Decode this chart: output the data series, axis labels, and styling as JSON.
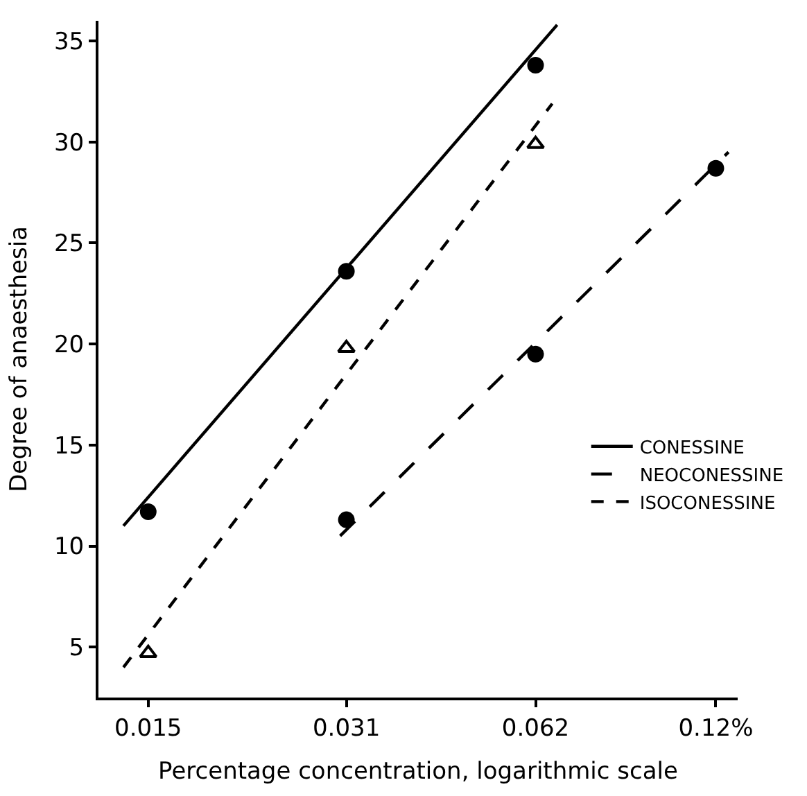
{
  "chart_data": {
    "type": "scatter",
    "xlabel": "Percentage concentration, logarithmic scale",
    "ylabel": "Degree of anaesthesia",
    "log": "x",
    "xlim": [
      0.0125,
      0.13
    ],
    "xticks": [
      0.015,
      0.031,
      0.062,
      {
        "value": 0.12,
        "label": "0.12%"
      }
    ],
    "ylim": [
      2.5,
      36
    ],
    "yticks": [
      5,
      10,
      15,
      20,
      25,
      30,
      35
    ],
    "legend": "right",
    "series": [
      {
        "type": "line",
        "name": "CONESSINE",
        "color": "#000000",
        "line_style": "solid",
        "marker": "none",
        "x": [
          0.0137,
          0.0671
        ],
        "values": [
          11.0,
          35.8
        ]
      },
      {
        "type": "line",
        "name": "NEOCONESSINE",
        "color": "#000000",
        "line_style": "dashed",
        "marker": "none",
        "x": [
          0.0303,
          0.1257
        ],
        "values": [
          10.5,
          29.5
        ]
      },
      {
        "type": "line",
        "name": "ISOCONESSINE",
        "color": "#000000",
        "line_style": "dotted",
        "marker": "none",
        "x": [
          0.0137,
          0.0659
        ],
        "values": [
          4.0,
          31.9
        ]
      },
      {
        "color": "#000000",
        "marker": "circle",
        "x": [
          0.015,
          0.031,
          0.062
        ],
        "values": [
          11.7,
          23.6,
          33.8
        ]
      },
      {
        "color": "#000000",
        "marker": "circle",
        "x": [
          0.031,
          0.062,
          0.12
        ],
        "values": [
          11.3,
          19.5,
          28.7
        ]
      },
      {
        "color": "#000000",
        "marker": "triangle",
        "x": [
          0.015,
          0.031,
          0.062
        ],
        "values": [
          4.7,
          19.8,
          29.9
        ]
      }
    ]
  }
}
